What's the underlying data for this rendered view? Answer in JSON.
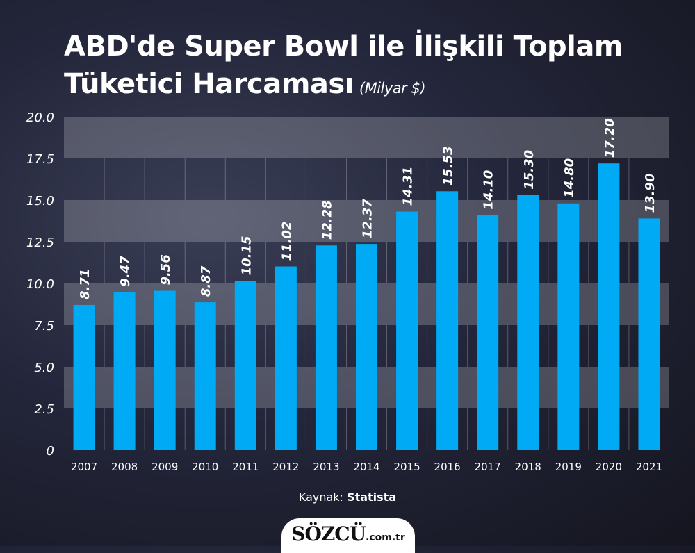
{
  "chart_data": {
    "type": "bar",
    "title_line1": "ABD'de Super Bowl ile İlişkili Toplam",
    "title_line2": "Tüketici Harcaması",
    "unit": "(Milyar $)",
    "categories": [
      "2007",
      "2008",
      "2009",
      "2010",
      "2011",
      "2012",
      "2013",
      "2014",
      "2015",
      "2016",
      "2017",
      "2018",
      "2019",
      "2020",
      "2021"
    ],
    "values": [
      8.71,
      9.47,
      9.56,
      8.87,
      10.15,
      11.02,
      12.28,
      12.37,
      14.31,
      15.53,
      14.1,
      15.3,
      14.8,
      17.2,
      13.9
    ],
    "value_labels": [
      "8.71",
      "9.47",
      "9.56",
      "8.87",
      "10.15",
      "11.02",
      "12.28",
      "12.37",
      "14.31",
      "15.53",
      "14.10",
      "15.30",
      "14.80",
      "17.20",
      "13.90"
    ],
    "yticks": [
      "0",
      "2.5",
      "5.0",
      "7.5",
      "10.0",
      "12.5",
      "15.0",
      "17.5",
      "20.0"
    ],
    "ylim": [
      0,
      20
    ],
    "bar_color": "#00aaf5",
    "grid": true,
    "xlabel": "",
    "ylabel": ""
  },
  "source_label": "Kaynak:",
  "source_name": "Statista",
  "logo": {
    "brand": "SÖZCÜ",
    "tld": ".com.tr"
  }
}
